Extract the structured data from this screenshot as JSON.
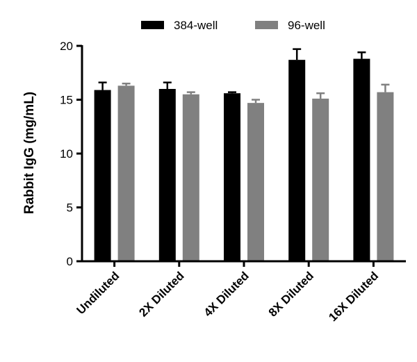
{
  "chart_data": {
    "type": "bar",
    "title": "",
    "xlabel": "",
    "ylabel": "Rabbit IgG (mg/mL)",
    "ylim": [
      0,
      20
    ],
    "yticks": [
      "0",
      "5",
      "10",
      "15",
      "20"
    ],
    "categories": [
      "Undiluted",
      "2X Diluted",
      "4X Diluted",
      "8X Diluted",
      "16X Diluted"
    ],
    "series": [
      {
        "name": "384-well",
        "color": "#000000",
        "values": [
          15.9,
          16.0,
          15.6,
          18.7,
          18.8
        ],
        "errors": [
          0.7,
          0.6,
          0.1,
          1.0,
          0.6
        ]
      },
      {
        "name": "96-well",
        "color": "#808080",
        "values": [
          16.3,
          15.5,
          14.7,
          15.1,
          15.7
        ],
        "errors": [
          0.2,
          0.2,
          0.3,
          0.5,
          0.7
        ]
      }
    ],
    "legend_position": "top"
  }
}
